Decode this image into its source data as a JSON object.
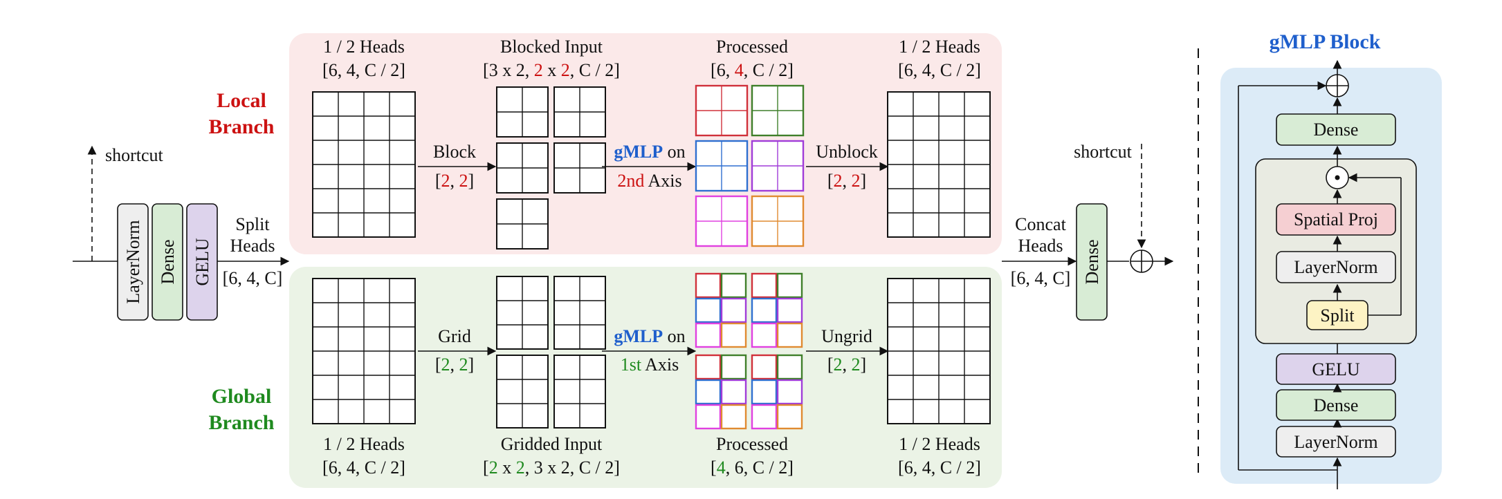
{
  "colors": {
    "red": "#cc1111",
    "green": "#1f8a1f",
    "blue": "#1f5fcc",
    "local_bg": "#fbe9e9",
    "global_bg": "#ebf3e6",
    "gmlp_bg": "#dcebf7",
    "layernorm_fill": "#eeeeee",
    "dense_fill": "#d8ecd5",
    "gelu_fill": "#ddd3ec",
    "spatial_fill": "#f5cfd2",
    "split_fill": "#fdf3c4"
  },
  "left": {
    "shortcut": "shortcut",
    "layernorm": "LayerNorm",
    "dense": "Dense",
    "gelu": "GELU",
    "split_line1": "Split",
    "split_line2": "Heads",
    "split_dims": "[6, 4, C]"
  },
  "local": {
    "title_line1": "Local",
    "title_line2": "Branch",
    "heads_label": "1 / 2 Heads",
    "heads_dims": "[6, 4, C / 2]",
    "blocked_label": "Blocked Input",
    "blocked_dims": {
      "a": "[3 x 2, ",
      "b": "2",
      "c": " x ",
      "d": "2",
      "e": ", C / 2]"
    },
    "block_op": "Block",
    "block_args": {
      "open": "[",
      "a": "2",
      "sep": ", ",
      "b": "2",
      "close": "]"
    },
    "gmlp_word": "gMLP",
    "gmlp_on": " on",
    "axis_ord": "2nd",
    "axis_word": " Axis",
    "processed_label": "Processed",
    "processed_dims": {
      "a": "[6, ",
      "b": "4",
      "c": ", C / 2]"
    },
    "unblock_op": "Unblock",
    "unblock_args": {
      "open": "[",
      "a": "2",
      "sep": ", ",
      "b": "2",
      "close": "]"
    },
    "out_heads_label": "1 / 2 Heads",
    "out_heads_dims": "[6, 4, C / 2]"
  },
  "global": {
    "title_line1": "Global",
    "title_line2": "Branch",
    "heads_label": "1 / 2 Heads",
    "heads_dims": "[6, 4, C / 2]",
    "gridded_label": "Gridded Input",
    "gridded_dims": {
      "a": "[",
      "b": "2",
      "c": " x ",
      "d": "2",
      "e": ", 3 x 2, C / 2]"
    },
    "grid_op": "Grid",
    "grid_args": {
      "open": "[",
      "a": "2",
      "sep": ", ",
      "b": "2",
      "close": "]"
    },
    "gmlp_word": "gMLP",
    "gmlp_on": " on",
    "axis_ord": "1st",
    "axis_word": " Axis",
    "processed_label": "Processed",
    "processed_dims": {
      "a": "[",
      "b": "4",
      "c": ", 6, C / 2]"
    },
    "ungrid_op": "Ungrid",
    "ungrid_args": {
      "open": "[",
      "a": "2",
      "sep": ", ",
      "b": "2",
      "close": "]"
    },
    "out_heads_label": "1 / 2 Heads",
    "out_heads_dims": "[6, 4, C / 2]"
  },
  "right": {
    "concat_line1": "Concat",
    "concat_line2": "Heads",
    "concat_dims": "[6, 4, C]",
    "shortcut": "shortcut",
    "dense": "Dense"
  },
  "gmlp_block": {
    "title": "gMLP Block",
    "dense_top": "Dense",
    "spatial_proj": "Spatial Proj",
    "layernorm_inner": "LayerNorm",
    "split": "Split",
    "gelu": "GELU",
    "dense_bottom": "Dense",
    "layernorm_bottom": "LayerNorm"
  }
}
